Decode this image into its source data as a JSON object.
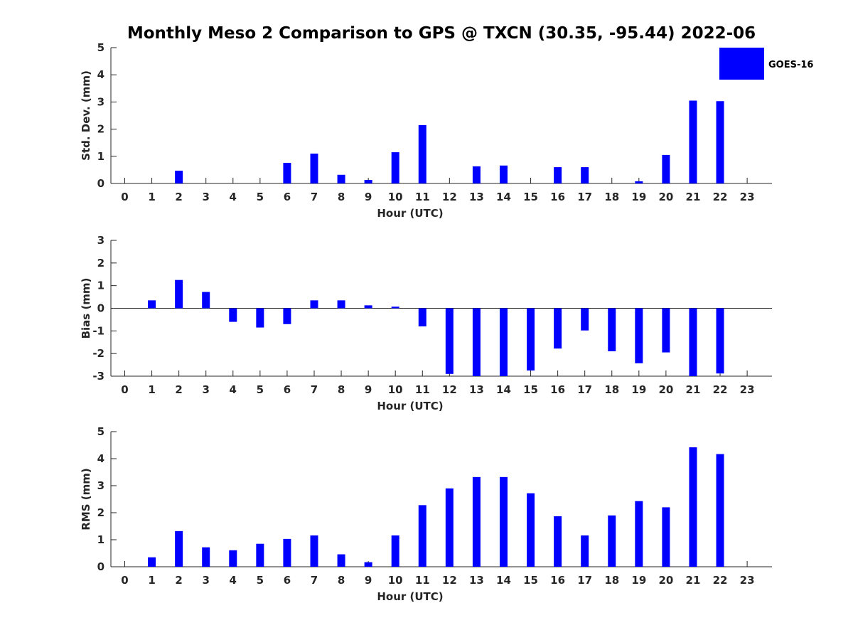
{
  "colors": {
    "bar": "#0000ff",
    "axis": "#262626",
    "background": "#ffffff"
  },
  "chart_data": {
    "type": "bar",
    "title": "Monthly Meso 2 Comparison to GPS @ TXCN (30.35, -95.44) 2022-06",
    "legend": {
      "label": "GOES-16",
      "position": "top-right"
    },
    "categories": [
      "0",
      "1",
      "2",
      "3",
      "4",
      "5",
      "6",
      "7",
      "8",
      "9",
      "10",
      "11",
      "12",
      "13",
      "14",
      "15",
      "16",
      "17",
      "18",
      "19",
      "20",
      "21",
      "22",
      "23"
    ],
    "panels": [
      {
        "name": "std-dev",
        "ylabel": "Std. Dev. (mm)",
        "xlabel": "Hour (UTC)",
        "ylim": [
          0,
          5
        ],
        "yticks": [
          0,
          1,
          2,
          3,
          4,
          5
        ],
        "zero_line": false,
        "series": [
          {
            "name": "GOES-16",
            "values": [
              null,
              null,
              0.47,
              null,
              null,
              null,
              0.76,
              1.1,
              0.32,
              0.13,
              1.15,
              2.15,
              null,
              0.63,
              0.66,
              null,
              0.6,
              0.6,
              null,
              0.08,
              1.05,
              3.05,
              3.03,
              null
            ]
          }
        ]
      },
      {
        "name": "bias",
        "ylabel": "Bias (mm)",
        "xlabel": "Hour (UTC)",
        "ylim": [
          -3,
          3
        ],
        "yticks": [
          -3,
          -2,
          -1,
          0,
          1,
          2,
          3
        ],
        "zero_line": true,
        "series": [
          {
            "name": "GOES-16",
            "values": [
              null,
              0.35,
              1.25,
              0.72,
              -0.6,
              -0.85,
              -0.7,
              0.35,
              0.35,
              0.13,
              0.07,
              -0.8,
              -2.9,
              -3.0,
              -3.0,
              -2.75,
              -1.78,
              -0.98,
              -1.9,
              -2.43,
              -1.95,
              -3.0,
              -2.88,
              null
            ]
          }
        ]
      },
      {
        "name": "rms",
        "ylabel": "RMS (mm)",
        "xlabel": "Hour (UTC)",
        "ylim": [
          0,
          5
        ],
        "yticks": [
          0,
          1,
          2,
          3,
          4,
          5
        ],
        "zero_line": false,
        "series": [
          {
            "name": "GOES-16",
            "values": [
              null,
              0.35,
              1.32,
              0.72,
              0.61,
              0.85,
              1.03,
              1.16,
              0.46,
              0.17,
              1.16,
              2.28,
              2.9,
              3.32,
              3.32,
              2.72,
              1.87,
              1.16,
              1.9,
              2.43,
              2.2,
              4.42,
              4.17,
              null
            ]
          }
        ]
      }
    ]
  }
}
